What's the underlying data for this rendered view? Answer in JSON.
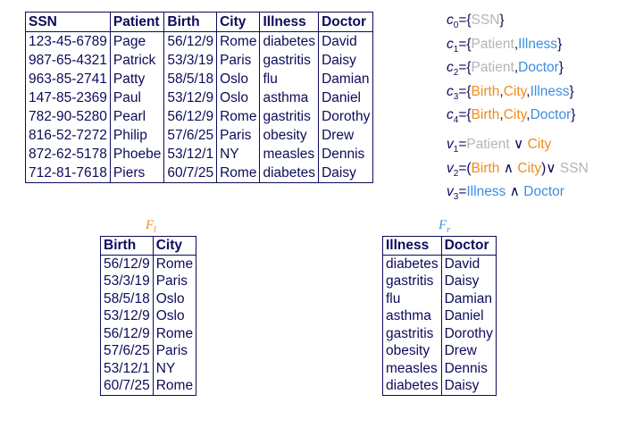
{
  "main_table": {
    "headers": [
      "SSN",
      "Patient",
      "Birth",
      "City",
      "Illness",
      "Doctor"
    ],
    "rows": [
      [
        "123-45-6789",
        "Page",
        "56/12/9",
        "Rome",
        "diabetes",
        "David"
      ],
      [
        "987-65-4321",
        "Patrick",
        "53/3/19",
        "Paris",
        "gastritis",
        "Daisy"
      ],
      [
        "963-85-2741",
        "Patty",
        "58/5/18",
        "Oslo",
        "flu",
        "Damian"
      ],
      [
        "147-85-2369",
        "Paul",
        "53/12/9",
        "Oslo",
        "asthma",
        "Daniel"
      ],
      [
        "782-90-5280",
        "Pearl",
        "56/12/9",
        "Rome",
        "gastritis",
        "Dorothy"
      ],
      [
        "816-52-7272",
        "Philip",
        "57/6/25",
        "Paris",
        "obesity",
        "Drew"
      ],
      [
        "872-62-5178",
        "Phoebe",
        "53/12/1",
        "NY",
        "measles",
        "Dennis"
      ],
      [
        "712-81-7618",
        "Piers",
        "60/7/25",
        "Rome",
        "diabetes",
        "Daisy"
      ]
    ]
  },
  "fl_table": {
    "label": "F",
    "label_sub": "l",
    "headers": [
      "Birth",
      "City"
    ],
    "rows": [
      [
        "56/12/9",
        "Rome"
      ],
      [
        "53/3/19",
        "Paris"
      ],
      [
        "58/5/18",
        "Oslo"
      ],
      [
        "53/12/9",
        "Oslo"
      ],
      [
        "56/12/9",
        "Rome"
      ],
      [
        "57/6/25",
        "Paris"
      ],
      [
        "53/12/1",
        "NY"
      ],
      [
        "60/7/25",
        "Rome"
      ]
    ]
  },
  "fr_table": {
    "label": "F",
    "label_sub": "r",
    "headers": [
      "Illness",
      "Doctor"
    ],
    "rows": [
      [
        "diabetes",
        "David"
      ],
      [
        "gastritis",
        "Daisy"
      ],
      [
        "flu",
        "Damian"
      ],
      [
        "asthma",
        "Daniel"
      ],
      [
        "gastritis",
        "Dorothy"
      ],
      [
        "obesity",
        "Drew"
      ],
      [
        "measles",
        "Dennis"
      ],
      [
        "diabetes",
        "Daisy"
      ]
    ]
  },
  "colors": {
    "gray": "#b4b4b4",
    "blue": "#3c8ede",
    "orange": "#f08c1c",
    "navy": "#0c0c5a"
  },
  "constraints": [
    {
      "sym": "c",
      "sub": "0",
      "parts": [
        {
          "t": "={",
          "c": "navy"
        },
        {
          "t": "SSN",
          "c": "gray"
        },
        {
          "t": "}",
          "c": "navy"
        }
      ]
    },
    {
      "sym": "c",
      "sub": "1",
      "parts": [
        {
          "t": "={",
          "c": "navy"
        },
        {
          "t": "Patient",
          "c": "gray"
        },
        {
          "t": ",",
          "c": "navy"
        },
        {
          "t": "Illness",
          "c": "blue"
        },
        {
          "t": "}",
          "c": "navy"
        }
      ]
    },
    {
      "sym": "c",
      "sub": "2",
      "parts": [
        {
          "t": "={",
          "c": "navy"
        },
        {
          "t": "Patient",
          "c": "gray"
        },
        {
          "t": ",",
          "c": "navy"
        },
        {
          "t": "Doctor",
          "c": "blue"
        },
        {
          "t": "}",
          "c": "navy"
        }
      ]
    },
    {
      "sym": "c",
      "sub": "3",
      "parts": [
        {
          "t": "={",
          "c": "navy"
        },
        {
          "t": "Birth",
          "c": "orange"
        },
        {
          "t": ",",
          "c": "navy"
        },
        {
          "t": "City",
          "c": "orange"
        },
        {
          "t": ",",
          "c": "navy"
        },
        {
          "t": "Illness",
          "c": "blue"
        },
        {
          "t": "}",
          "c": "navy"
        }
      ]
    },
    {
      "sym": "c",
      "sub": "4",
      "parts": [
        {
          "t": "={",
          "c": "navy"
        },
        {
          "t": "Birth",
          "c": "orange"
        },
        {
          "t": ",",
          "c": "navy"
        },
        {
          "t": "City",
          "c": "orange"
        },
        {
          "t": ",",
          "c": "navy"
        },
        {
          "t": "Doctor",
          "c": "blue"
        },
        {
          "t": "}",
          "c": "navy"
        }
      ]
    }
  ],
  "visibility": [
    {
      "sym": "v",
      "sub": "1",
      "parts": [
        {
          "t": "=",
          "c": "navy"
        },
        {
          "t": "Patient",
          "c": "gray"
        },
        {
          "t": " ∨ ",
          "c": "navy"
        },
        {
          "t": "City",
          "c": "orange"
        }
      ]
    },
    {
      "sym": "v",
      "sub": "2",
      "parts": [
        {
          "t": "=(",
          "c": "navy"
        },
        {
          "t": "Birth",
          "c": "orange"
        },
        {
          "t": " ∧ ",
          "c": "navy"
        },
        {
          "t": "City",
          "c": "orange"
        },
        {
          "t": ")∨ ",
          "c": "navy"
        },
        {
          "t": "SSN",
          "c": "gray"
        }
      ]
    },
    {
      "sym": "v",
      "sub": "3",
      "parts": [
        {
          "t": "=",
          "c": "navy"
        },
        {
          "t": "Illness",
          "c": "blue"
        },
        {
          "t": " ∧ ",
          "c": "navy"
        },
        {
          "t": "Doctor",
          "c": "blue"
        }
      ]
    }
  ]
}
